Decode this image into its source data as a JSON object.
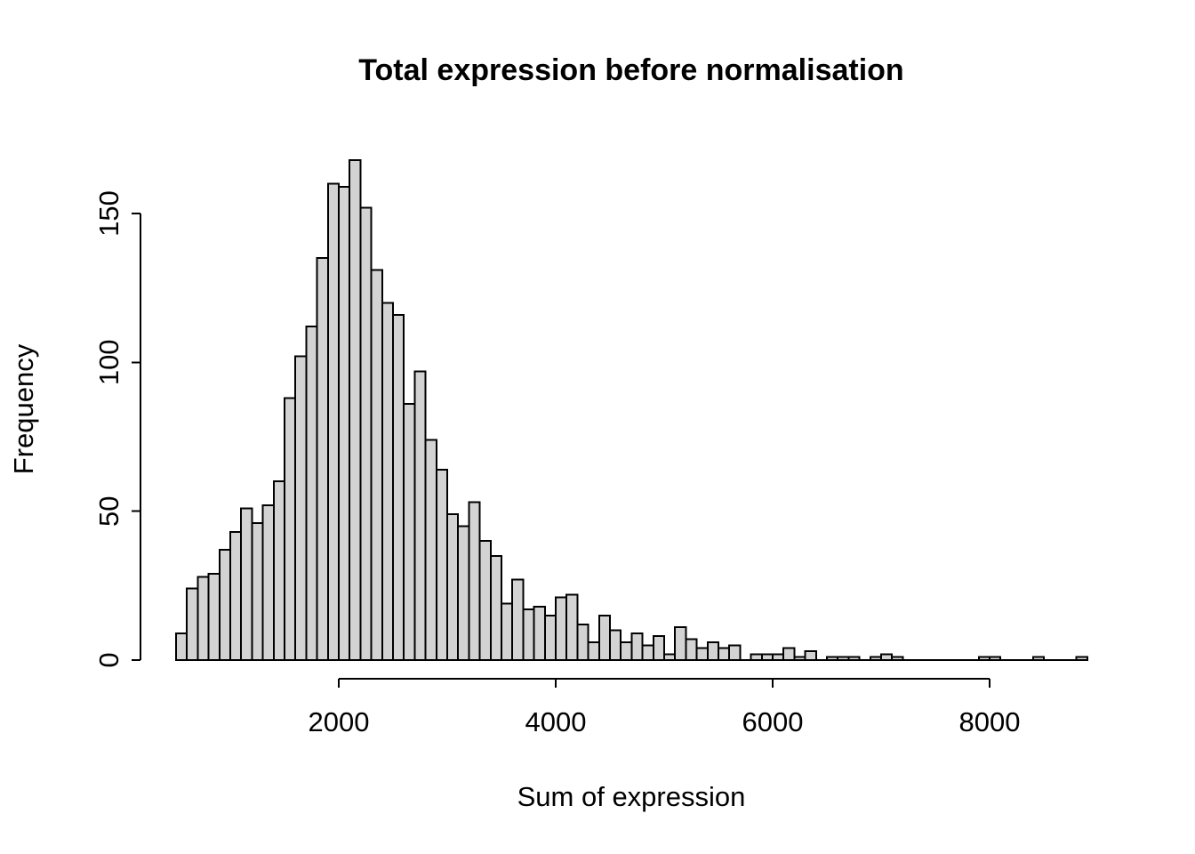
{
  "chart_data": {
    "type": "bar",
    "subtype": "histogram",
    "title": "Total expression before normalisation",
    "xlabel": "Sum of expression",
    "ylabel": "Frequency",
    "bin_start": 500,
    "bin_width": 100,
    "counts": [
      9,
      24,
      28,
      29,
      37,
      43,
      51,
      46,
      52,
      60,
      88,
      102,
      112,
      135,
      160,
      159,
      168,
      152,
      131,
      120,
      116,
      86,
      97,
      74,
      64,
      49,
      45,
      53,
      40,
      35,
      19,
      27,
      17,
      18,
      15,
      21,
      22,
      12,
      6,
      15,
      10,
      6,
      9,
      5,
      8,
      2,
      11,
      7,
      4,
      6,
      4,
      5,
      0,
      2,
      2,
      2,
      4,
      1,
      3,
      0,
      1,
      1,
      1,
      0,
      1,
      2,
      1,
      0,
      0,
      0,
      0,
      0,
      0,
      0,
      1,
      1,
      0,
      0,
      0,
      1,
      0,
      0,
      0,
      1
    ],
    "x_ticks": [
      2000,
      4000,
      6000,
      8000
    ],
    "y_ticks": [
      0,
      50,
      100,
      150
    ],
    "xlim": [
      500,
      8900
    ],
    "ylim": [
      0,
      168
    ],
    "grid": false,
    "legend": "none",
    "bar_fill": "#d3d3d3",
    "bar_border": "#000000",
    "axis_color": "#000000",
    "background": "#ffffff"
  }
}
